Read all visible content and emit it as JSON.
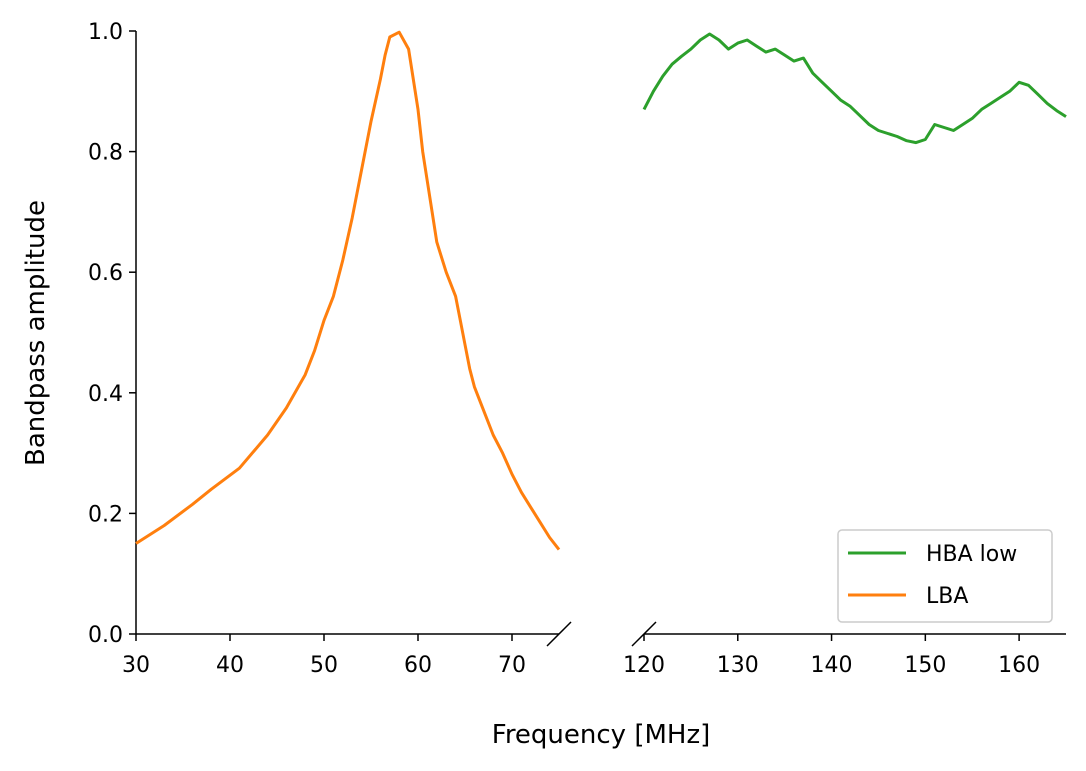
{
  "chart_data": {
    "type": "line",
    "title": "",
    "xlabel": "Frequency [MHz]",
    "ylabel": "Bandpass amplitude",
    "ylim": [
      0,
      1
    ],
    "y_ticks": [
      "0.0",
      "0.2",
      "0.4",
      "0.6",
      "0.8",
      "1.0"
    ],
    "broken_x_axis": true,
    "grid": false,
    "legend_position": "lower-right",
    "segments": [
      {
        "xlim": [
          30,
          75
        ],
        "x_ticks": [
          "30",
          "40",
          "50",
          "60",
          "70"
        ]
      },
      {
        "xlim": [
          120,
          165
        ],
        "x_ticks": [
          "120",
          "130",
          "140",
          "150",
          "160"
        ]
      }
    ],
    "series": [
      {
        "name": "HBA low",
        "color": "#2ca02c",
        "segment": 1,
        "x": [
          120,
          121,
          122,
          123,
          124,
          125,
          126,
          127,
          128,
          129,
          130,
          131,
          132,
          133,
          134,
          135,
          136,
          137,
          138,
          139,
          140,
          141,
          142,
          143,
          144,
          145,
          146,
          147,
          148,
          149,
          150,
          151,
          152,
          153,
          154,
          155,
          156,
          157,
          158,
          159,
          160,
          161,
          162,
          163,
          164,
          165
        ],
        "y": [
          0.87,
          0.9,
          0.925,
          0.945,
          0.958,
          0.97,
          0.985,
          0.995,
          0.985,
          0.97,
          0.98,
          0.985,
          0.975,
          0.965,
          0.97,
          0.96,
          0.95,
          0.955,
          0.93,
          0.915,
          0.9,
          0.885,
          0.875,
          0.86,
          0.845,
          0.835,
          0.83,
          0.825,
          0.818,
          0.815,
          0.82,
          0.845,
          0.84,
          0.835,
          0.845,
          0.855,
          0.87,
          0.88,
          0.89,
          0.9,
          0.915,
          0.91,
          0.895,
          0.88,
          0.868,
          0.858
        ]
      },
      {
        "name": "LBA",
        "color": "#ff7f0e",
        "segment": 0,
        "x": [
          30,
          33,
          36,
          38,
          41,
          44,
          46,
          48,
          49,
          50,
          51,
          52,
          53,
          54,
          55,
          56,
          56.5,
          57,
          58,
          59,
          60,
          60.5,
          61,
          61.5,
          62,
          63,
          64,
          64.5,
          65,
          65.5,
          66,
          67,
          68,
          69,
          70,
          71,
          72,
          73,
          74,
          75
        ],
        "y": [
          0.15,
          0.18,
          0.215,
          0.24,
          0.275,
          0.33,
          0.375,
          0.43,
          0.47,
          0.52,
          0.56,
          0.62,
          0.69,
          0.77,
          0.85,
          0.92,
          0.96,
          0.99,
          0.998,
          0.97,
          0.87,
          0.8,
          0.75,
          0.7,
          0.65,
          0.6,
          0.56,
          0.52,
          0.48,
          0.44,
          0.41,
          0.37,
          0.33,
          0.3,
          0.265,
          0.235,
          0.21,
          0.185,
          0.16,
          0.14
        ]
      }
    ]
  }
}
